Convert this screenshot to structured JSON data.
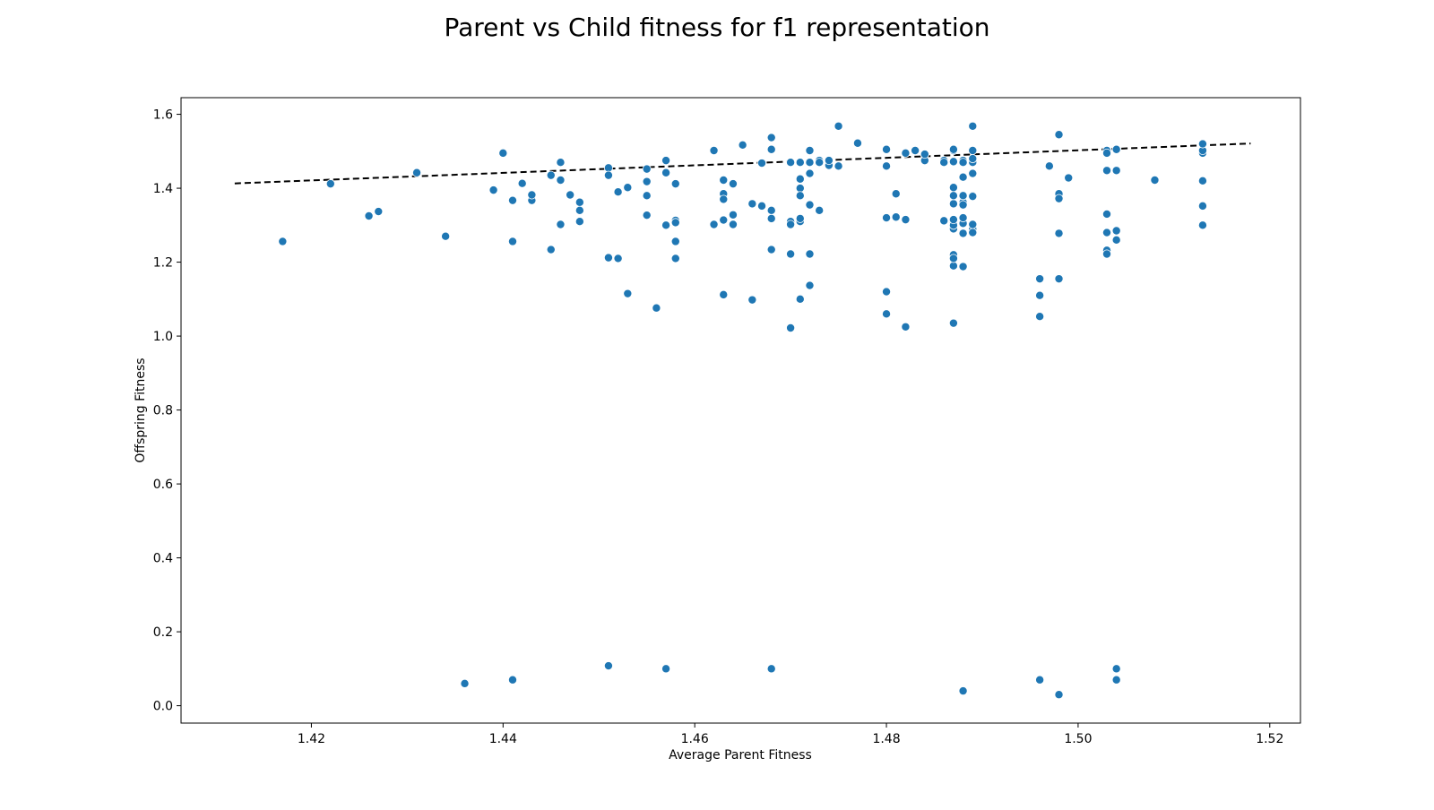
{
  "chart_data": {
    "type": "scatter",
    "title": "Parent vs Child fitness for f1 representation",
    "xlabel": "Average Parent Fitness",
    "ylabel": "Offspring Fitness",
    "xlim": [
      1.4064,
      1.5232
    ],
    "ylim": [
      -0.047,
      1.645
    ],
    "xticks": [
      1.42,
      1.44,
      1.46,
      1.48,
      1.5,
      1.52
    ],
    "xtick_labels": [
      "1.42",
      "1.44",
      "1.46",
      "1.48",
      "1.50",
      "1.52"
    ],
    "yticks": [
      0.0,
      0.2,
      0.4,
      0.6,
      0.8,
      1.0,
      1.2,
      1.4,
      1.6
    ],
    "ytick_labels": [
      "0.0",
      "0.2",
      "0.4",
      "0.6",
      "0.8",
      "1.0",
      "1.2",
      "1.4",
      "1.6"
    ],
    "grid": false,
    "point_color": "#1f77b4",
    "trend_color": "#000000",
    "trend_line": {
      "style": "dashed",
      "x": [
        1.412,
        1.518
      ],
      "y": [
        1.413,
        1.521
      ]
    },
    "points": [
      [
        1.417,
        1.256
      ],
      [
        1.422,
        1.412
      ],
      [
        1.426,
        1.325
      ],
      [
        1.427,
        1.337
      ],
      [
        1.431,
        1.442
      ],
      [
        1.434,
        1.27
      ],
      [
        1.436,
        0.06
      ],
      [
        1.439,
        1.395
      ],
      [
        1.44,
        1.495
      ],
      [
        1.441,
        1.367
      ],
      [
        1.441,
        1.256
      ],
      [
        1.441,
        0.07
      ],
      [
        1.442,
        1.413
      ],
      [
        1.443,
        1.367
      ],
      [
        1.443,
        1.382
      ],
      [
        1.445,
        1.435
      ],
      [
        1.445,
        1.234
      ],
      [
        1.446,
        1.422
      ],
      [
        1.446,
        1.47
      ],
      [
        1.446,
        1.302
      ],
      [
        1.447,
        1.382
      ],
      [
        1.448,
        1.362
      ],
      [
        1.448,
        1.34
      ],
      [
        1.448,
        1.31
      ],
      [
        1.451,
        1.455
      ],
      [
        1.451,
        1.435
      ],
      [
        1.451,
        1.212
      ],
      [
        1.451,
        0.108
      ],
      [
        1.452,
        1.39
      ],
      [
        1.452,
        1.21
      ],
      [
        1.453,
        1.115
      ],
      [
        1.453,
        1.402
      ],
      [
        1.455,
        1.418
      ],
      [
        1.455,
        1.38
      ],
      [
        1.455,
        1.327
      ],
      [
        1.455,
        1.452
      ],
      [
        1.456,
        1.076
      ],
      [
        1.457,
        1.442
      ],
      [
        1.457,
        1.475
      ],
      [
        1.457,
        1.3
      ],
      [
        1.457,
        0.1
      ],
      [
        1.458,
        1.412
      ],
      [
        1.458,
        1.313
      ],
      [
        1.458,
        1.21
      ],
      [
        1.458,
        1.256
      ],
      [
        1.458,
        1.307
      ],
      [
        1.462,
        1.502
      ],
      [
        1.462,
        1.302
      ],
      [
        1.463,
        1.385
      ],
      [
        1.463,
        1.37
      ],
      [
        1.463,
        1.422
      ],
      [
        1.463,
        1.314
      ],
      [
        1.463,
        1.112
      ],
      [
        1.464,
        1.412
      ],
      [
        1.464,
        1.302
      ],
      [
        1.464,
        1.328
      ],
      [
        1.465,
        1.517
      ],
      [
        1.466,
        1.358
      ],
      [
        1.466,
        1.098
      ],
      [
        1.467,
        1.352
      ],
      [
        1.467,
        1.468
      ],
      [
        1.468,
        1.537
      ],
      [
        1.468,
        1.34
      ],
      [
        1.468,
        1.318
      ],
      [
        1.468,
        1.234
      ],
      [
        1.468,
        1.505
      ],
      [
        1.468,
        0.1
      ],
      [
        1.47,
        1.222
      ],
      [
        1.47,
        1.307
      ],
      [
        1.47,
        1.31
      ],
      [
        1.47,
        1.47
      ],
      [
        1.47,
        1.302
      ],
      [
        1.47,
        1.022
      ],
      [
        1.471,
        1.31
      ],
      [
        1.471,
        1.318
      ],
      [
        1.471,
        1.47
      ],
      [
        1.471,
        1.4
      ],
      [
        1.471,
        1.1
      ],
      [
        1.471,
        1.38
      ],
      [
        1.471,
        1.425
      ],
      [
        1.472,
        1.44
      ],
      [
        1.472,
        1.355
      ],
      [
        1.472,
        1.222
      ],
      [
        1.472,
        1.137
      ],
      [
        1.472,
        1.502
      ],
      [
        1.472,
        1.47
      ],
      [
        1.473,
        1.34
      ],
      [
        1.473,
        1.475
      ],
      [
        1.473,
        1.47
      ],
      [
        1.474,
        1.462
      ],
      [
        1.474,
        1.475
      ],
      [
        1.475,
        1.46
      ],
      [
        1.475,
        1.568
      ],
      [
        1.477,
        1.522
      ],
      [
        1.48,
        1.46
      ],
      [
        1.48,
        1.32
      ],
      [
        1.48,
        1.12
      ],
      [
        1.48,
        1.06
      ],
      [
        1.48,
        1.46
      ],
      [
        1.48,
        1.505
      ],
      [
        1.481,
        1.385
      ],
      [
        1.481,
        1.322
      ],
      [
        1.482,
        1.495
      ],
      [
        1.482,
        1.315
      ],
      [
        1.482,
        1.025
      ],
      [
        1.483,
        1.502
      ],
      [
        1.484,
        1.475
      ],
      [
        1.484,
        1.492
      ],
      [
        1.486,
        1.475
      ],
      [
        1.486,
        1.312
      ],
      [
        1.486,
        1.47
      ],
      [
        1.486,
        1.312
      ],
      [
        1.487,
        1.502
      ],
      [
        1.487,
        1.472
      ],
      [
        1.487,
        1.305
      ],
      [
        1.487,
        1.29
      ],
      [
        1.487,
        1.402
      ],
      [
        1.487,
        1.358
      ],
      [
        1.487,
        1.22
      ],
      [
        1.487,
        1.19
      ],
      [
        1.487,
        1.21
      ],
      [
        1.487,
        1.035
      ],
      [
        1.487,
        1.3
      ],
      [
        1.487,
        1.315
      ],
      [
        1.487,
        1.38
      ],
      [
        1.487,
        1.505
      ],
      [
        1.488,
        1.362
      ],
      [
        1.488,
        1.38
      ],
      [
        1.488,
        1.475
      ],
      [
        1.488,
        1.305
      ],
      [
        1.488,
        1.43
      ],
      [
        1.488,
        1.47
      ],
      [
        1.488,
        0.04
      ],
      [
        1.488,
        1.355
      ],
      [
        1.488,
        1.32
      ],
      [
        1.488,
        1.278
      ],
      [
        1.488,
        1.188
      ],
      [
        1.489,
        1.38
      ],
      [
        1.489,
        1.475
      ],
      [
        1.489,
        1.502
      ],
      [
        1.489,
        1.44
      ],
      [
        1.489,
        1.47
      ],
      [
        1.489,
        1.378
      ],
      [
        1.489,
        1.29
      ],
      [
        1.489,
        1.28
      ],
      [
        1.489,
        1.302
      ],
      [
        1.489,
        1.568
      ],
      [
        1.489,
        1.48
      ],
      [
        1.496,
        1.155
      ],
      [
        1.496,
        1.11
      ],
      [
        1.496,
        1.053
      ],
      [
        1.496,
        0.07
      ],
      [
        1.497,
        1.46
      ],
      [
        1.498,
        1.545
      ],
      [
        1.498,
        1.385
      ],
      [
        1.498,
        1.372
      ],
      [
        1.498,
        1.155
      ],
      [
        1.498,
        1.278
      ],
      [
        1.498,
        0.03
      ],
      [
        1.499,
        1.428
      ],
      [
        1.503,
        1.448
      ],
      [
        1.503,
        1.502
      ],
      [
        1.503,
        1.495
      ],
      [
        1.503,
        1.28
      ],
      [
        1.503,
        1.232
      ],
      [
        1.503,
        1.33
      ],
      [
        1.503,
        1.222
      ],
      [
        1.504,
        1.285
      ],
      [
        1.504,
        1.26
      ],
      [
        1.504,
        1.448
      ],
      [
        1.504,
        0.1
      ],
      [
        1.504,
        0.07
      ],
      [
        1.504,
        1.505
      ],
      [
        1.508,
        1.422
      ],
      [
        1.513,
        1.42
      ],
      [
        1.513,
        1.495
      ],
      [
        1.513,
        1.502
      ],
      [
        1.513,
        1.352
      ],
      [
        1.513,
        1.3
      ],
      [
        1.513,
        1.52
      ]
    ]
  }
}
